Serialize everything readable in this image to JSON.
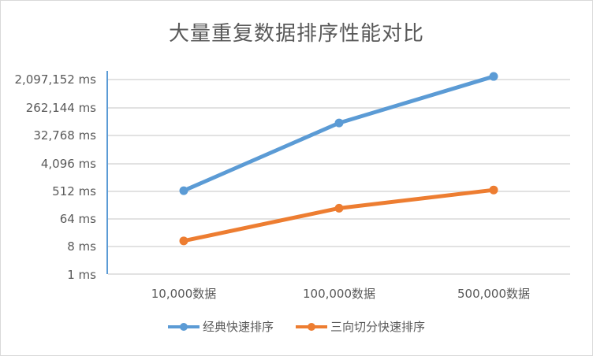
{
  "chart_data": {
    "type": "line",
    "title": "大量重复数据排序性能对比",
    "xlabel": "",
    "ylabel": "",
    "yscale": "log8",
    "categories": [
      "10,000数据",
      "100,000数据",
      "500,000数据"
    ],
    "y_ticks": [
      "2,097,152 ms",
      "262,144 ms",
      "32,768 ms",
      "4,096 ms",
      "512 ms",
      "64 ms",
      "8 ms",
      "1 ms"
    ],
    "ylim": [
      1,
      2097152
    ],
    "grid": true,
    "legend_position": "bottom",
    "series": [
      {
        "name": "经典快速排序",
        "color": "#5b9bd5",
        "values": [
          512,
          81000,
          2630000
        ]
      },
      {
        "name": "三向切分快速排序",
        "color": "#ed7d31",
        "values": [
          12,
          138,
          540
        ]
      }
    ]
  }
}
